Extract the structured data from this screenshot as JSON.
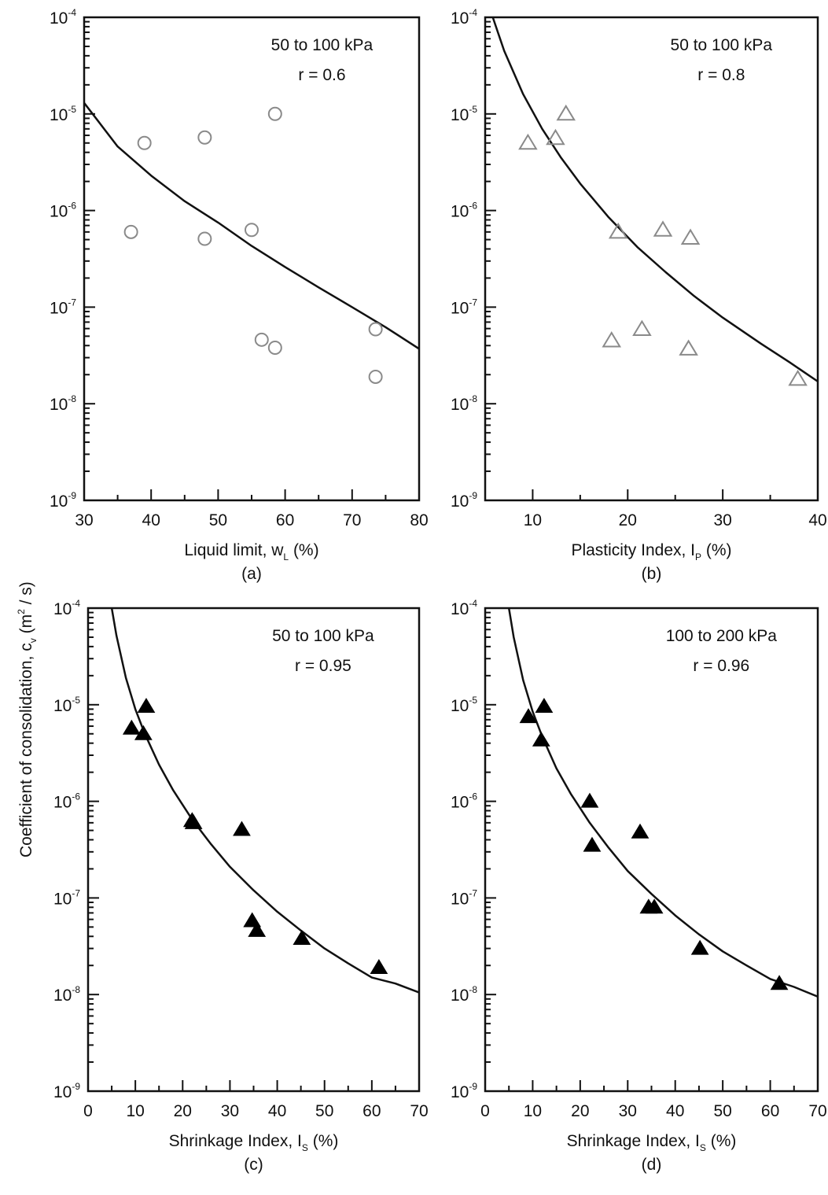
{
  "figure": {
    "ylabel": "Coefficient of consolidation, c",
    "ylabel_sub": "v",
    "ylabel_unit_pre": " (m",
    "ylabel_unit_sup": "2",
    "ylabel_unit_post": " / s)"
  },
  "chart_data": [
    {
      "id": "a",
      "type": "scatter",
      "title": "",
      "panel_label": "(a)",
      "annotation": [
        "50 to 100 kPa",
        "r = 0.6"
      ],
      "xlabel": "Liquid limit, w",
      "xlabel_sub": "L",
      "xlabel_post": " (%)",
      "ylabel": "Coefficient of consolidation, cv (m2 / s)",
      "xlim": [
        30,
        80
      ],
      "xticks": [
        30,
        40,
        50,
        60,
        70,
        80
      ],
      "ylim": [
        1e-09,
        0.0001
      ],
      "yscale": "log",
      "yticks": [
        "10^-4",
        "10^-5",
        "10^-6",
        "10^-7",
        "10^-8",
        "10^-9"
      ],
      "grid": false,
      "marker": "open-circle",
      "marker_color": "#8a8a8a",
      "points": [
        {
          "x": 37.0,
          "y": 6e-07
        },
        {
          "x": 39.0,
          "y": 5e-06
        },
        {
          "x": 48.0,
          "y": 5.7e-06
        },
        {
          "x": 48.0,
          "y": 5.1e-07
        },
        {
          "x": 55.0,
          "y": 6.3e-07
        },
        {
          "x": 58.5,
          "y": 1e-05
        },
        {
          "x": 56.5,
          "y": 4.6e-08
        },
        {
          "x": 58.5,
          "y": 3.8e-08
        },
        {
          "x": 73.5,
          "y": 5.9e-08
        },
        {
          "x": 73.5,
          "y": 1.9e-08
        }
      ],
      "fit_curve": {
        "type": "power",
        "x": [
          30,
          35,
          40,
          45,
          50,
          55,
          60,
          65,
          70,
          75,
          80
        ],
        "y": [
          1.3e-05,
          4.6e-06,
          2.3e-06,
          1.25e-06,
          7.5e-07,
          4.3e-07,
          2.6e-07,
          1.6e-07,
          1e-07,
          6.2e-08,
          3.7e-08
        ]
      }
    },
    {
      "id": "b",
      "type": "scatter",
      "panel_label": "(b)",
      "annotation": [
        "50 to 100 kPa",
        "r = 0.8"
      ],
      "xlabel": "Plasticity Index, I",
      "xlabel_sub": "P",
      "xlabel_post": " (%)",
      "xlim": [
        5,
        40
      ],
      "xticks": [
        10,
        20,
        30,
        40
      ],
      "ylim": [
        1e-09,
        0.0001
      ],
      "yscale": "log",
      "yticks": [
        "10^-4",
        "10^-5",
        "10^-6",
        "10^-7",
        "10^-8",
        "10^-9"
      ],
      "grid": false,
      "marker": "open-triangle",
      "marker_color": "#8a8a8a",
      "points": [
        {
          "x": 9.5,
          "y": 5e-06
        },
        {
          "x": 12.4,
          "y": 5.6e-06
        },
        {
          "x": 13.5,
          "y": 1e-05
        },
        {
          "x": 19.0,
          "y": 6e-07
        },
        {
          "x": 23.7,
          "y": 6.3e-07
        },
        {
          "x": 26.6,
          "y": 5.2e-07
        },
        {
          "x": 18.3,
          "y": 4.5e-08
        },
        {
          "x": 21.5,
          "y": 5.9e-08
        },
        {
          "x": 26.4,
          "y": 3.7e-08
        },
        {
          "x": 37.9,
          "y": 1.8e-08
        }
      ],
      "fit_curve": {
        "type": "power",
        "x": [
          5.8,
          7,
          9,
          11,
          13,
          15,
          18,
          21,
          24,
          27,
          30,
          34,
          37,
          40
        ],
        "y": [
          0.0001,
          4.5e-05,
          1.6e-05,
          7e-06,
          3.5e-06,
          1.9e-06,
          8.5e-07,
          4.2e-07,
          2.3e-07,
          1.3e-07,
          7.8e-08,
          4.2e-08,
          2.7e-08,
          1.7e-08
        ]
      }
    },
    {
      "id": "c",
      "type": "scatter",
      "panel_label": "(c)",
      "annotation": [
        "50 to 100 kPa",
        "r = 0.95"
      ],
      "xlabel": "Shrinkage Index, I",
      "xlabel_sub": "S",
      "xlabel_post": " (%)",
      "xlim": [
        0,
        70
      ],
      "xticks": [
        0,
        10,
        20,
        30,
        40,
        50,
        60,
        70
      ],
      "ylim": [
        1e-09,
        0.0001
      ],
      "yscale": "log",
      "yticks": [
        "10^-4",
        "10^-5",
        "10^-6",
        "10^-7",
        "10^-8",
        "10^-9"
      ],
      "grid": false,
      "marker": "filled-triangle",
      "marker_color": "#000000",
      "points": [
        {
          "x": 9.2,
          "y": 5.7e-06
        },
        {
          "x": 11.7,
          "y": 5e-06
        },
        {
          "x": 12.3,
          "y": 9.6e-06
        },
        {
          "x": 22.0,
          "y": 6.3e-07
        },
        {
          "x": 22.3,
          "y": 6e-07
        },
        {
          "x": 32.5,
          "y": 5.1e-07
        },
        {
          "x": 34.7,
          "y": 5.8e-08
        },
        {
          "x": 35.7,
          "y": 4.6e-08
        },
        {
          "x": 45.2,
          "y": 3.8e-08
        },
        {
          "x": 61.5,
          "y": 1.9e-08
        }
      ],
      "fit_curve": {
        "type": "power",
        "x": [
          5.0,
          6,
          8,
          10,
          12,
          15,
          18,
          22,
          26,
          30,
          35,
          40,
          45,
          50,
          55,
          60,
          65,
          70
        ],
        "y": [
          0.0001,
          5.2e-05,
          1.9e-05,
          9e-06,
          5e-06,
          2.4e-06,
          1.3e-06,
          6.5e-07,
          3.6e-07,
          2.1e-07,
          1.2e-07,
          7.2e-08,
          4.6e-08,
          3e-08,
          2.1e-08,
          1.5e-08,
          1.3e-08,
          1.05e-08
        ]
      }
    },
    {
      "id": "d",
      "type": "scatter",
      "panel_label": "(d)",
      "annotation": [
        "100 to 200 kPa",
        "r = 0.96"
      ],
      "xlabel": "Shrinkage Index, I",
      "xlabel_sub": "S",
      "xlabel_post": " (%)",
      "xlim": [
        0,
        70
      ],
      "xticks": [
        0,
        10,
        20,
        30,
        40,
        50,
        60,
        70
      ],
      "ylim": [
        1e-09,
        0.0001
      ],
      "yscale": "log",
      "yticks": [
        "10^-4",
        "10^-5",
        "10^-6",
        "10^-7",
        "10^-8",
        "10^-9"
      ],
      "grid": false,
      "marker": "filled-triangle",
      "marker_color": "#000000",
      "points": [
        {
          "x": 9.1,
          "y": 7.5e-06
        },
        {
          "x": 12.4,
          "y": 9.6e-06
        },
        {
          "x": 11.8,
          "y": 4.3e-06
        },
        {
          "x": 22.0,
          "y": 1e-06
        },
        {
          "x": 32.6,
          "y": 4.8e-07
        },
        {
          "x": 22.5,
          "y": 3.5e-07
        },
        {
          "x": 34.4,
          "y": 8e-08
        },
        {
          "x": 35.6,
          "y": 8e-08
        },
        {
          "x": 45.2,
          "y": 3e-08
        },
        {
          "x": 61.9,
          "y": 1.3e-08
        }
      ],
      "fit_curve": {
        "type": "power",
        "x": [
          5.0,
          6,
          8,
          10,
          12,
          15,
          18,
          22,
          26,
          30,
          35,
          40,
          45,
          50,
          55,
          60,
          65,
          70
        ],
        "y": [
          0.0001,
          5e-05,
          1.8e-05,
          8.5e-06,
          4.7e-06,
          2.2e-06,
          1.2e-06,
          6e-07,
          3.3e-07,
          1.9e-07,
          1.1e-07,
          6.6e-08,
          4.2e-08,
          2.8e-08,
          2e-08,
          1.45e-08,
          1.2e-08,
          9.5e-09
        ]
      }
    }
  ]
}
